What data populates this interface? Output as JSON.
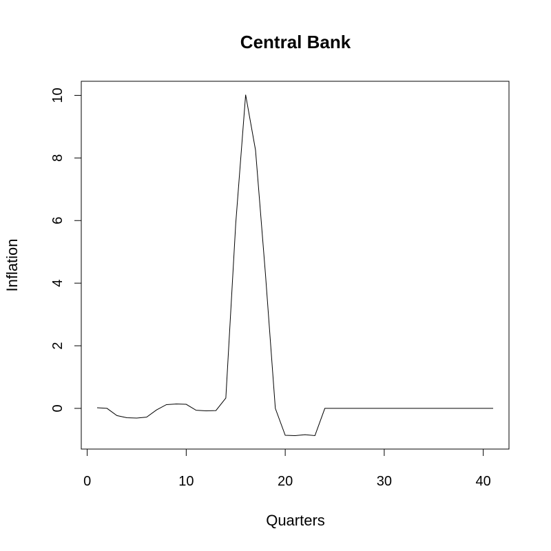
{
  "chart_data": {
    "type": "line",
    "title": "Central Bank",
    "xlabel": "Quarters",
    "ylabel": "Inflation",
    "xlim": [
      -0.6,
      42.6
    ],
    "ylim": [
      -1.3,
      10.45
    ],
    "xticks": [
      0,
      10,
      20,
      30,
      40
    ],
    "yticks": [
      0,
      2,
      4,
      6,
      8,
      10
    ],
    "grid": false,
    "series": [
      {
        "x": [
          1,
          2,
          3,
          4,
          5,
          6,
          7,
          8,
          9,
          10,
          11,
          12,
          13,
          14,
          15,
          16,
          17,
          18,
          19,
          20,
          21,
          22,
          23,
          24,
          25,
          26,
          27,
          28,
          29,
          30,
          31,
          32,
          33,
          34,
          35,
          36,
          37,
          38,
          39,
          40,
          41
        ],
        "values": [
          0.02,
          0.0,
          -0.23,
          -0.3,
          -0.31,
          -0.28,
          -0.05,
          0.12,
          0.14,
          0.13,
          -0.06,
          -0.08,
          -0.07,
          0.33,
          5.9,
          10.02,
          8.25,
          4.3,
          0.0,
          -0.86,
          -0.87,
          -0.84,
          -0.87,
          0.0,
          0.0,
          0.0,
          0.0,
          0.0,
          0.0,
          0.0,
          0.0,
          0.0,
          0.0,
          0.0,
          0.0,
          0.0,
          0.0,
          0.0,
          0.0,
          0.0,
          0.0
        ],
        "color": "#000000"
      }
    ]
  }
}
